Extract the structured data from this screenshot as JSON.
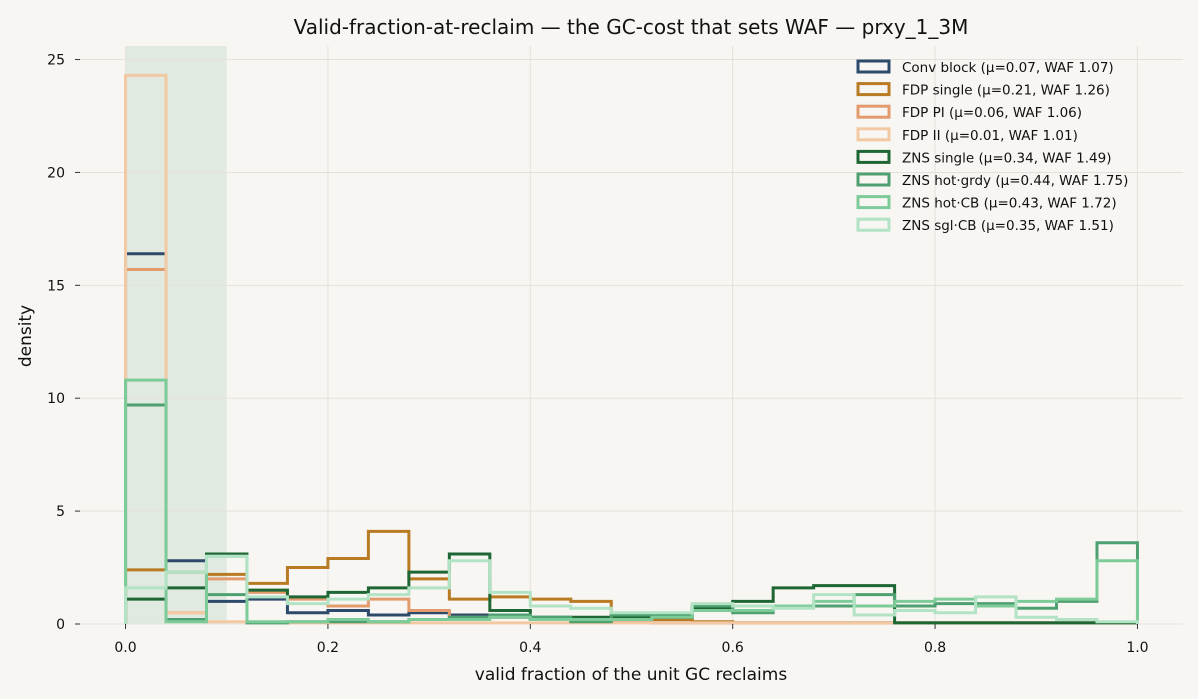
{
  "chart_data": {
    "type": "histogram",
    "title": "Valid-fraction-at-reclaim — the GC-cost that sets WAF — prxy_1_3M",
    "xlabel": "valid fraction of the unit GC reclaims",
    "ylabel": "density",
    "xlim": [
      -0.045,
      1.045
    ],
    "ylim": [
      0,
      25.6
    ],
    "xticks": [
      0.0,
      0.2,
      0.4,
      0.6,
      0.8,
      1.0
    ],
    "xtick_labels": [
      "0.0",
      "0.2",
      "0.4",
      "0.6",
      "0.8",
      "1.0"
    ],
    "yticks": [
      0,
      5,
      10,
      15,
      20,
      25
    ],
    "ytick_labels": [
      "0",
      "5",
      "10",
      "15",
      "20",
      "25"
    ],
    "grid": true,
    "legend_position": "top-right",
    "bin_edges": [
      0.0,
      0.04,
      0.08,
      0.12,
      0.16,
      0.2,
      0.24,
      0.28,
      0.32,
      0.36,
      0.4,
      0.44,
      0.48,
      0.52,
      0.56,
      0.6,
      0.64,
      0.68,
      0.72,
      0.76,
      0.8,
      0.84,
      0.88,
      0.92,
      0.96,
      1.0
    ],
    "highlight_band": [
      0.0,
      0.1
    ],
    "highlight_color": "#c3dbc9",
    "series": [
      {
        "name": "Conv block  (μ=0.07, WAF 1.07)",
        "color": "#2e4a6b",
        "values": [
          16.4,
          2.8,
          1.0,
          1.1,
          0.5,
          0.6,
          0.4,
          0.5,
          0.4,
          0.3,
          0.2,
          0.1,
          0.1,
          0.05,
          0.05,
          0.05,
          0.05,
          0.05,
          0.05,
          0.05,
          0.05,
          0.05,
          0.05,
          0.05,
          0.05
        ]
      },
      {
        "name": "FDP single  (μ=0.21, WAF 1.26)",
        "color": "#b87a22",
        "values": [
          2.4,
          2.3,
          2.2,
          1.8,
          2.5,
          2.9,
          4.1,
          2.0,
          1.1,
          1.2,
          1.1,
          1.0,
          0.3,
          0.2,
          0.1,
          0.05,
          0.05,
          0.05,
          0.05,
          0.05,
          0.05,
          0.05,
          0.05,
          0.05,
          0.05
        ]
      },
      {
        "name": "FDP PI  (μ=0.06, WAF 1.06)",
        "color": "#e39a6c",
        "values": [
          15.7,
          0.5,
          2.0,
          1.4,
          1.1,
          0.8,
          1.1,
          0.6,
          0.3,
          0.3,
          0.2,
          0.2,
          0.1,
          0.05,
          0.05,
          0.05,
          0.05,
          0.05,
          0.05,
          0.05,
          0.05,
          0.05,
          0.05,
          0.05,
          0.05
        ]
      },
      {
        "name": "FDP II  (μ=0.01, WAF 1.01)",
        "color": "#f2c9a2",
        "values": [
          24.3,
          0.5,
          0.1,
          0.05,
          0.05,
          0.05,
          0.05,
          0.05,
          0.05,
          0.05,
          0.05,
          0.05,
          0.05,
          0.05,
          0.05,
          0.05,
          0.05,
          0.05,
          0.05,
          0.05,
          0.05,
          0.05,
          0.05,
          0.05,
          0.05
        ]
      },
      {
        "name": "ZNS single  (μ=0.34, WAF 1.49)",
        "color": "#1e6633",
        "values": [
          1.1,
          1.6,
          3.1,
          1.5,
          1.2,
          1.4,
          1.6,
          2.3,
          3.1,
          0.6,
          0.3,
          0.3,
          0.3,
          0.3,
          0.7,
          1.0,
          1.6,
          1.7,
          1.7,
          0.05,
          0.05,
          0.05,
          0.05,
          0.05,
          0.05
        ]
      },
      {
        "name": "ZNS hot·grdy  (μ=0.44, WAF 1.75)",
        "color": "#4fa071",
        "values": [
          9.7,
          0.2,
          1.3,
          0.05,
          0.1,
          0.1,
          0.1,
          0.2,
          0.3,
          0.4,
          0.3,
          0.1,
          0.4,
          0.4,
          0.8,
          0.5,
          0.8,
          0.8,
          1.3,
          0.8,
          0.9,
          0.9,
          0.7,
          1.0,
          3.6
        ]
      },
      {
        "name": "ZNS hot·CB  (μ=0.43, WAF 1.72)",
        "color": "#7ecb9a",
        "values": [
          10.8,
          0.1,
          3.0,
          0.1,
          0.1,
          0.2,
          0.1,
          0.2,
          0.2,
          0.3,
          0.2,
          0.2,
          0.2,
          0.3,
          0.6,
          0.6,
          0.8,
          1.0,
          0.8,
          1.0,
          1.1,
          0.8,
          1.0,
          1.1,
          2.8
        ]
      },
      {
        "name": "ZNS sgl·CB  (μ=0.35, WAF 1.51)",
        "color": "#b2e3c4",
        "values": [
          1.6,
          2.3,
          3.0,
          1.2,
          0.9,
          1.1,
          1.3,
          1.6,
          2.8,
          1.4,
          0.8,
          0.7,
          0.5,
          0.5,
          0.9,
          0.8,
          0.7,
          1.3,
          0.4,
          0.6,
          0.5,
          1.2,
          0.3,
          0.2,
          0.1
        ]
      }
    ]
  }
}
